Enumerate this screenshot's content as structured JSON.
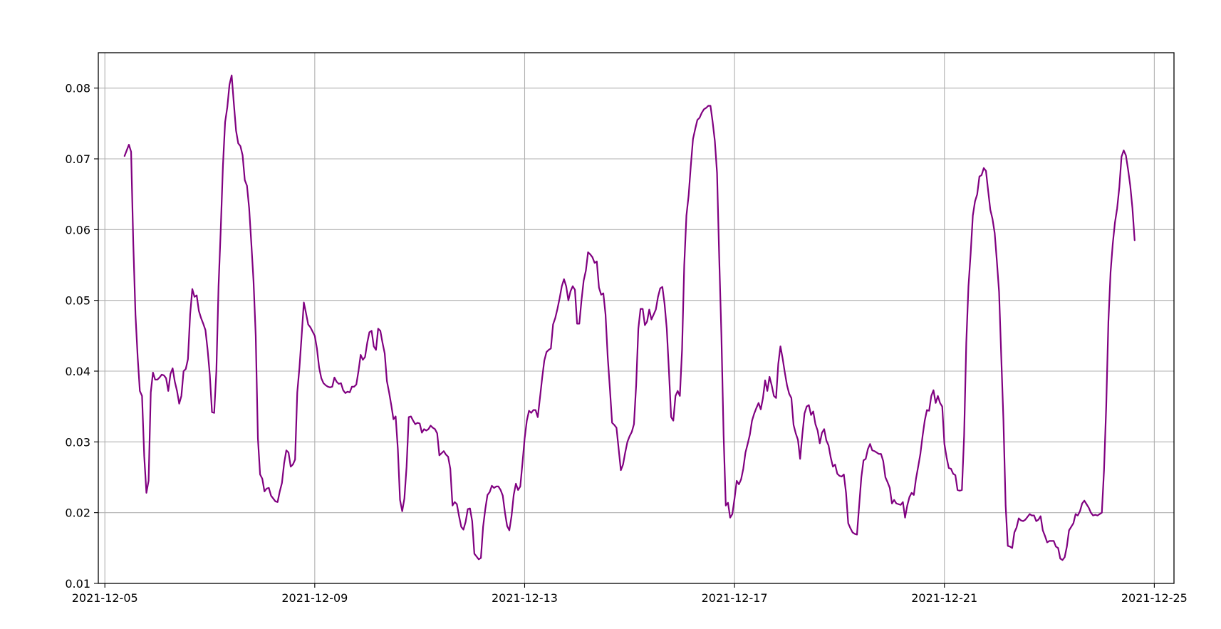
{
  "chart_data": {
    "type": "line",
    "title": "",
    "xlabel": "",
    "ylabel": "",
    "x_start": "2021-12-05 09:00",
    "x_step_hours": 1,
    "xlim": [
      "2021-12-04 21:00",
      "2021-12-25 09:00"
    ],
    "ylim": [
      0.01,
      0.085
    ],
    "x_tick_labels": [
      "2021-12-05",
      "2021-12-09",
      "2021-12-13",
      "2021-12-17",
      "2021-12-21",
      "2021-12-25"
    ],
    "y_tick_labels": [
      "0.01",
      "0.02",
      "0.03",
      "0.04",
      "0.05",
      "0.06",
      "0.07",
      "0.08"
    ],
    "grid": true,
    "series": [
      {
        "color": "#800080",
        "values": [
          0.0704,
          0.0712,
          0.072,
          0.071,
          0.058,
          0.048,
          0.042,
          0.0372,
          0.0365,
          0.028,
          0.0228,
          0.0245,
          0.037,
          0.0398,
          0.0388,
          0.0388,
          0.0391,
          0.0395,
          0.0394,
          0.039,
          0.0372,
          0.0396,
          0.0404,
          0.0385,
          0.0372,
          0.0354,
          0.0365,
          0.04,
          0.0403,
          0.0417,
          0.048,
          0.0516,
          0.0505,
          0.0507,
          0.0485,
          0.0475,
          0.0467,
          0.0458,
          0.043,
          0.0395,
          0.0342,
          0.0341,
          0.04,
          0.052,
          0.06,
          0.069,
          0.0752,
          0.0773,
          0.0805,
          0.0818,
          0.0778,
          0.074,
          0.0722,
          0.0718,
          0.0705,
          0.067,
          0.0662,
          0.063,
          0.058,
          0.0527,
          0.045,
          0.0305,
          0.0254,
          0.0248,
          0.023,
          0.0234,
          0.0235,
          0.0224,
          0.022,
          0.0216,
          0.0215,
          0.023,
          0.0242,
          0.027,
          0.0288,
          0.0285,
          0.0265,
          0.0268,
          0.0275,
          0.037,
          0.0405,
          0.045,
          0.0497,
          0.0482,
          0.0466,
          0.0462,
          0.0456,
          0.045,
          0.0432,
          0.0405,
          0.039,
          0.0383,
          0.038,
          0.0378,
          0.0377,
          0.0378,
          0.0391,
          0.0385,
          0.0382,
          0.0383,
          0.0373,
          0.0369,
          0.0371,
          0.037,
          0.0378,
          0.0378,
          0.0381,
          0.04,
          0.0423,
          0.0416,
          0.042,
          0.044,
          0.0455,
          0.0457,
          0.0435,
          0.043,
          0.046,
          0.0457,
          0.044,
          0.0425,
          0.0386,
          0.037,
          0.0352,
          0.0332,
          0.0336,
          0.029,
          0.0218,
          0.0202,
          0.022,
          0.0265,
          0.0335,
          0.0336,
          0.033,
          0.0325,
          0.0327,
          0.0326,
          0.0313,
          0.0318,
          0.0316,
          0.0318,
          0.0323,
          0.032,
          0.0318,
          0.0312,
          0.0281,
          0.0284,
          0.0287,
          0.0282,
          0.0279,
          0.0262,
          0.021,
          0.0215,
          0.0212,
          0.0195,
          0.018,
          0.0176,
          0.0187,
          0.0205,
          0.0206,
          0.0188,
          0.0142,
          0.0138,
          0.0134,
          0.0136,
          0.018,
          0.0205,
          0.0225,
          0.0229,
          0.0238,
          0.0235,
          0.0237,
          0.0237,
          0.0232,
          0.0224,
          0.02,
          0.0181,
          0.0175,
          0.0195,
          0.0225,
          0.0241,
          0.0232,
          0.0237,
          0.027,
          0.0305,
          0.033,
          0.0344,
          0.0341,
          0.0345,
          0.0345,
          0.0335,
          0.0362,
          0.039,
          0.0415,
          0.0427,
          0.043,
          0.0432,
          0.0466,
          0.0475,
          0.0488,
          0.0503,
          0.052,
          0.053,
          0.052,
          0.05,
          0.0513,
          0.052,
          0.0515,
          0.0467,
          0.0467,
          0.05,
          0.0528,
          0.0542,
          0.0568,
          0.0565,
          0.0561,
          0.0553,
          0.0555,
          0.0518,
          0.0508,
          0.051,
          0.048,
          0.042,
          0.0375,
          0.0327,
          0.0324,
          0.032,
          0.029,
          0.026,
          0.0268,
          0.0285,
          0.03,
          0.0308,
          0.0314,
          0.0325,
          0.038,
          0.046,
          0.0488,
          0.0488,
          0.0465,
          0.047,
          0.0487,
          0.0473,
          0.048,
          0.0487,
          0.0505,
          0.0517,
          0.0519,
          0.0495,
          0.046,
          0.04,
          0.0335,
          0.033,
          0.0365,
          0.0372,
          0.0365,
          0.043,
          0.055,
          0.062,
          0.0648,
          0.069,
          0.0728,
          0.0742,
          0.0755,
          0.0758,
          0.0765,
          0.077,
          0.0772,
          0.0775,
          0.0775,
          0.0752,
          0.0725,
          0.068,
          0.056,
          0.045,
          0.031,
          0.021,
          0.0214,
          0.0193,
          0.0198,
          0.022,
          0.0245,
          0.024,
          0.0247,
          0.0262,
          0.0285,
          0.0297,
          0.031,
          0.033,
          0.034,
          0.0348,
          0.0355,
          0.0346,
          0.0362,
          0.0387,
          0.0372,
          0.0392,
          0.038,
          0.0365,
          0.0362,
          0.041,
          0.0435,
          0.0418,
          0.0398,
          0.038,
          0.0368,
          0.0362,
          0.0324,
          0.0312,
          0.0303,
          0.0276,
          0.031,
          0.034,
          0.035,
          0.0352,
          0.0338,
          0.0343,
          0.0325,
          0.0316,
          0.0298,
          0.0313,
          0.0318,
          0.0302,
          0.0295,
          0.0278,
          0.0265,
          0.0268,
          0.0255,
          0.0252,
          0.0251,
          0.0254,
          0.0228,
          0.0185,
          0.0178,
          0.0172,
          0.017,
          0.0169,
          0.021,
          0.025,
          0.0274,
          0.0276,
          0.029,
          0.0297,
          0.0288,
          0.0287,
          0.0285,
          0.0283,
          0.0283,
          0.0273,
          0.025,
          0.0243,
          0.0235,
          0.0213,
          0.0218,
          0.0213,
          0.0212,
          0.0211,
          0.0215,
          0.0193,
          0.021,
          0.0222,
          0.0228,
          0.0225,
          0.0248,
          0.0265,
          0.0283,
          0.0308,
          0.033,
          0.0345,
          0.0344,
          0.0365,
          0.0373,
          0.0355,
          0.0365,
          0.0355,
          0.035,
          0.0297,
          0.0278,
          0.0263,
          0.0262,
          0.0255,
          0.0253,
          0.0232,
          0.0231,
          0.0232,
          0.0308,
          0.044,
          0.052,
          0.0566,
          0.062,
          0.064,
          0.065,
          0.0675,
          0.0677,
          0.0687,
          0.0683,
          0.0655,
          0.0628,
          0.0615,
          0.0595,
          0.0555,
          0.0512,
          0.042,
          0.033,
          0.021,
          0.0153,
          0.0152,
          0.015,
          0.0172,
          0.0179,
          0.0192,
          0.0189,
          0.0188,
          0.019,
          0.0194,
          0.0198,
          0.0196,
          0.0196,
          0.0188,
          0.019,
          0.0195,
          0.0175,
          0.0167,
          0.0158,
          0.016,
          0.016,
          0.016,
          0.0152,
          0.015,
          0.0135,
          0.0133,
          0.0137,
          0.0152,
          0.0175,
          0.018,
          0.0185,
          0.0198,
          0.0196,
          0.0202,
          0.0213,
          0.0217,
          0.0212,
          0.0207,
          0.02,
          0.0196,
          0.0197,
          0.0196,
          0.0198,
          0.02,
          0.026,
          0.035,
          0.047,
          0.054,
          0.058,
          0.061,
          0.063,
          0.066,
          0.0703,
          0.0712,
          0.0705,
          0.0685,
          0.0662,
          0.063,
          0.0585
        ]
      }
    ]
  }
}
